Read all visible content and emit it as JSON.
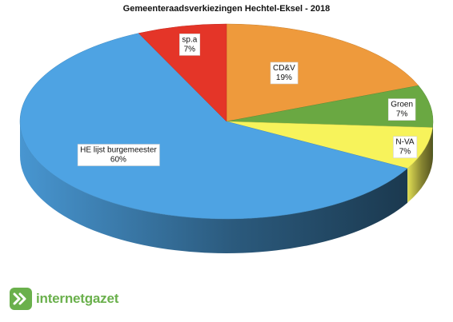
{
  "chart_data": {
    "type": "pie",
    "style": "3d-tilted",
    "title": "Gemeenteraadsverkiezingen Hechtel-Eksel - 2018",
    "slices": [
      {
        "name": "CD&V",
        "label": "19%",
        "value": 19,
        "color": "#ee9a3c"
      },
      {
        "name": "Groen",
        "label": "7%",
        "value": 7,
        "color": "#6aa842"
      },
      {
        "name": "N-VA",
        "label": "7%",
        "value": 7,
        "color": "#f7f35b"
      },
      {
        "name": "HE lijst burgemeester",
        "label": "60%",
        "value": 60,
        "color": "#4ea3e3"
      },
      {
        "name": "sp.a",
        "label": "7%",
        "value": 7,
        "color": "#e43528"
      }
    ]
  },
  "brand": {
    "name": "internetgazet",
    "icon": "double-chevron-logo",
    "color": "#6ab04c"
  }
}
